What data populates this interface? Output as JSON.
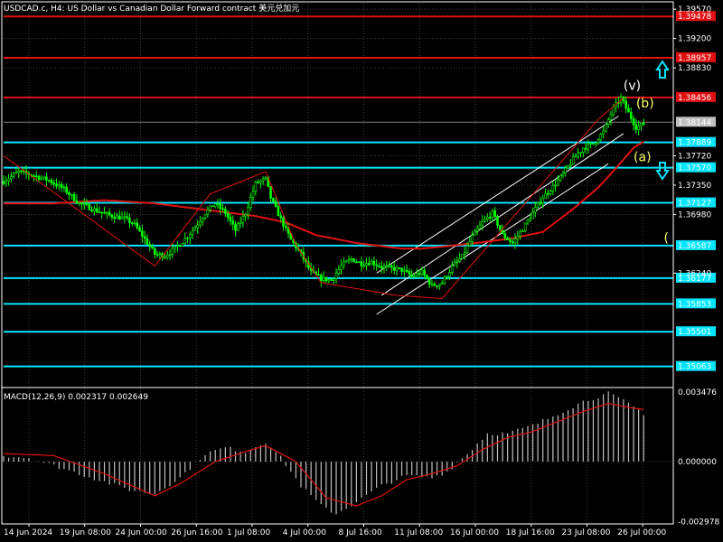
{
  "header": {
    "title": "USDCAD.c, H4:  US Dollar vs Canadian Dollar Forward contract  美元兑加元"
  },
  "colors": {
    "background": "#000000",
    "grid": "#3a3a3a",
    "candle": "#00ff00",
    "support_line": "#00e5ff",
    "resistance_line": "#e01010",
    "moving_average": "#e01010",
    "channel": "#ffffff",
    "current_price_line": "#808080",
    "wave_label_white": "#ffffff",
    "wave_label_yellow": "#ffff66",
    "arrow": "#00e5ff",
    "macd_hist": "#c0c0c0",
    "macd_signal": "#e01010"
  },
  "chart_data": {
    "type": "candlestick",
    "symbol": "USDCAD.c",
    "timeframe": "H4",
    "ylim": [
      1.3482,
      1.3964
    ],
    "x_tick_labels": [
      "14 Jun 2024",
      "19 Jun 08:00",
      "24 Jun 00:00",
      "26 Jun 16:00",
      "1 Jul 08:00",
      "4 Jul 00:00",
      "8 Jul 16:00",
      "11 Jul 08:00",
      "16 Jul 00:00",
      "18 Jul 16:00",
      "23 Jul 08:00",
      "26 Jul 00:00"
    ],
    "y_tick_labels": [
      {
        "value": 1.3957,
        "label": "1.39570"
      },
      {
        "value": 1.392,
        "label": "1.39200"
      },
      {
        "value": 1.3883,
        "label": "1.38830"
      },
      {
        "value": 1.3772,
        "label": "1.37720"
      },
      {
        "value": 1.3735,
        "label": "1.37350"
      },
      {
        "value": 1.3698,
        "label": "1.36980"
      },
      {
        "value": 1.3624,
        "label": "1.36240"
      }
    ],
    "horizontal_levels": [
      {
        "value": 1.39478,
        "label": "1.39478",
        "kind": "resistance"
      },
      {
        "value": 1.38957,
        "label": "1.38957",
        "kind": "resistance"
      },
      {
        "value": 1.38456,
        "label": "1.38456",
        "kind": "resistance"
      },
      {
        "value": 1.38144,
        "label": "1.38144",
        "kind": "current"
      },
      {
        "value": 1.37889,
        "label": "1.37889",
        "kind": "support"
      },
      {
        "value": 1.3757,
        "label": "1.37570",
        "kind": "support"
      },
      {
        "value": 1.37127,
        "label": "1.37127",
        "kind": "support"
      },
      {
        "value": 1.36587,
        "label": "1.36587",
        "kind": "support"
      },
      {
        "value": 1.36177,
        "label": "1.36177",
        "kind": "support"
      },
      {
        "value": 1.35853,
        "label": "1.35853",
        "kind": "support"
      },
      {
        "value": 1.35501,
        "label": "1.35501",
        "kind": "support"
      },
      {
        "value": 1.35063,
        "label": "1.35063",
        "kind": "support"
      }
    ],
    "price_path": [
      [
        0,
        1.374
      ],
      [
        6,
        1.3752
      ],
      [
        12,
        1.3747
      ],
      [
        18,
        1.3741
      ],
      [
        24,
        1.373
      ],
      [
        30,
        1.3712
      ],
      [
        36,
        1.3704
      ],
      [
        42,
        1.3697
      ],
      [
        48,
        1.3693
      ],
      [
        52,
        1.3685
      ],
      [
        56,
        1.3667
      ],
      [
        60,
        1.3648
      ],
      [
        64,
        1.3646
      ],
      [
        68,
        1.3655
      ],
      [
        72,
        1.3667
      ],
      [
        76,
        1.3682
      ],
      [
        80,
        1.37
      ],
      [
        84,
        1.3712
      ],
      [
        88,
        1.37
      ],
      [
        92,
        1.3678
      ],
      [
        96,
        1.37
      ],
      [
        100,
        1.3737
      ],
      [
        104,
        1.3743
      ],
      [
        106,
        1.3719
      ],
      [
        110,
        1.3692
      ],
      [
        114,
        1.3666
      ],
      [
        118,
        1.3648
      ],
      [
        122,
        1.3625
      ],
      [
        126,
        1.3617
      ],
      [
        130,
        1.3615
      ],
      [
        134,
        1.3633
      ],
      [
        138,
        1.3642
      ],
      [
        142,
        1.3636
      ],
      [
        146,
        1.3638
      ],
      [
        150,
        1.3632
      ],
      [
        154,
        1.363
      ],
      [
        158,
        1.3628
      ],
      [
        162,
        1.362
      ],
      [
        166,
        1.3625
      ],
      [
        170,
        1.3608
      ],
      [
        174,
        1.3612
      ],
      [
        178,
        1.3632
      ],
      [
        182,
        1.3645
      ],
      [
        186,
        1.367
      ],
      [
        190,
        1.3688
      ],
      [
        194,
        1.37
      ],
      [
        198,
        1.3672
      ],
      [
        202,
        1.3662
      ],
      [
        206,
        1.368
      ],
      [
        210,
        1.37
      ],
      [
        214,
        1.372
      ],
      [
        218,
        1.3733
      ],
      [
        222,
        1.3749
      ],
      [
        226,
        1.3768
      ],
      [
        230,
        1.3782
      ],
      [
        234,
        1.3787
      ],
      [
        238,
        1.3802
      ],
      [
        242,
        1.3832
      ],
      [
        245,
        1.3845
      ],
      [
        248,
        1.3826
      ],
      [
        251,
        1.3808
      ],
      [
        254,
        1.3812
      ]
    ],
    "moving_average": [
      [
        0,
        1.3712
      ],
      [
        20,
        1.3712
      ],
      [
        40,
        1.3716
      ],
      [
        60,
        1.3712
      ],
      [
        80,
        1.3704
      ],
      [
        100,
        1.3696
      ],
      [
        112,
        1.3688
      ],
      [
        124,
        1.3672
      ],
      [
        140,
        1.3662
      ],
      [
        158,
        1.3655
      ],
      [
        166,
        1.3655
      ],
      [
        176,
        1.3658
      ],
      [
        190,
        1.3663
      ],
      [
        202,
        1.3668
      ],
      [
        214,
        1.3676
      ],
      [
        226,
        1.3705
      ],
      [
        236,
        1.3732
      ],
      [
        244,
        1.376
      ],
      [
        250,
        1.3782
      ],
      [
        254,
        1.379
      ]
    ],
    "channel_lines": [
      {
        "from": [
          148,
          1.3624
        ],
        "to": [
          244,
          1.3822
        ]
      },
      {
        "from": [
          150,
          1.3596
        ],
        "to": [
          246,
          1.38
        ]
      },
      {
        "from": [
          148,
          1.3572
        ],
        "to": [
          240,
          1.3762
        ]
      }
    ],
    "wave_lines": [
      [
        [
          0,
          1.3772
        ],
        [
          60,
          1.3633
        ],
        [
          82,
          1.3724
        ],
        [
          104,
          1.3752
        ],
        [
          116,
          1.366
        ],
        [
          126,
          1.3612
        ],
        [
          156,
          1.3596
        ],
        [
          174,
          1.3592
        ],
        [
          236,
          1.3818
        ],
        [
          246,
          1.3845
        ]
      ]
    ],
    "wave_labels": [
      {
        "text": "(v)",
        "x": 246,
        "y": 1.3855,
        "color": "white"
      },
      {
        "text": "(b)",
        "x": 251,
        "y": 1.3833,
        "color": "yellow"
      },
      {
        "text": "(a)",
        "x": 250,
        "y": 1.3765,
        "color": "yellow"
      },
      {
        "text": "(",
        "x": 262,
        "y": 1.3663,
        "color": "yellow"
      }
    ],
    "macd": {
      "label": "MACD(12,26,9) 0.002317 0.002649",
      "ylim": [
        -0.0031,
        0.0036
      ],
      "y_tick_labels": [
        {
          "value": 0.003476,
          "label": "0.003476"
        },
        {
          "value": 0.0,
          "label": "0.000000"
        },
        {
          "value": -0.002978,
          "label": "-0.002978"
        }
      ],
      "histogram": [
        [
          0,
          0.0003
        ],
        [
          10,
          0.0002
        ],
        [
          20,
          -0.0002
        ],
        [
          30,
          -0.0006
        ],
        [
          40,
          -0.001
        ],
        [
          50,
          -0.0014
        ],
        [
          60,
          -0.0016
        ],
        [
          70,
          -0.0008
        ],
        [
          80,
          0.0004
        ],
        [
          88,
          0.0007
        ],
        [
          96,
          0.0005
        ],
        [
          104,
          0.001
        ],
        [
          110,
          0.0002
        ],
        [
          118,
          -0.0012
        ],
        [
          126,
          -0.0022
        ],
        [
          132,
          -0.0026
        ],
        [
          140,
          -0.002
        ],
        [
          150,
          -0.0012
        ],
        [
          160,
          -0.0007
        ],
        [
          170,
          -0.0008
        ],
        [
          176,
          -0.0005
        ],
        [
          184,
          0.0004
        ],
        [
          192,
          0.0014
        ],
        [
          200,
          0.0014
        ],
        [
          210,
          0.0018
        ],
        [
          220,
          0.0024
        ],
        [
          230,
          0.003
        ],
        [
          240,
          0.0034
        ],
        [
          248,
          0.0029
        ],
        [
          254,
          0.0024
        ]
      ],
      "signal": [
        [
          0,
          0.0004
        ],
        [
          20,
          0.0003
        ],
        [
          40,
          -0.0006
        ],
        [
          60,
          -0.0017
        ],
        [
          70,
          -0.0011
        ],
        [
          84,
          0.0
        ],
        [
          96,
          0.0005
        ],
        [
          104,
          0.0008
        ],
        [
          116,
          0.0
        ],
        [
          128,
          -0.0018
        ],
        [
          140,
          -0.0022
        ],
        [
          150,
          -0.0017
        ],
        [
          160,
          -0.0009
        ],
        [
          170,
          -0.0006
        ],
        [
          180,
          -0.0002
        ],
        [
          190,
          0.0006
        ],
        [
          200,
          0.0012
        ],
        [
          210,
          0.0015
        ],
        [
          220,
          0.002
        ],
        [
          230,
          0.0025
        ],
        [
          240,
          0.0029
        ],
        [
          248,
          0.0027
        ],
        [
          254,
          0.0026
        ]
      ]
    }
  }
}
